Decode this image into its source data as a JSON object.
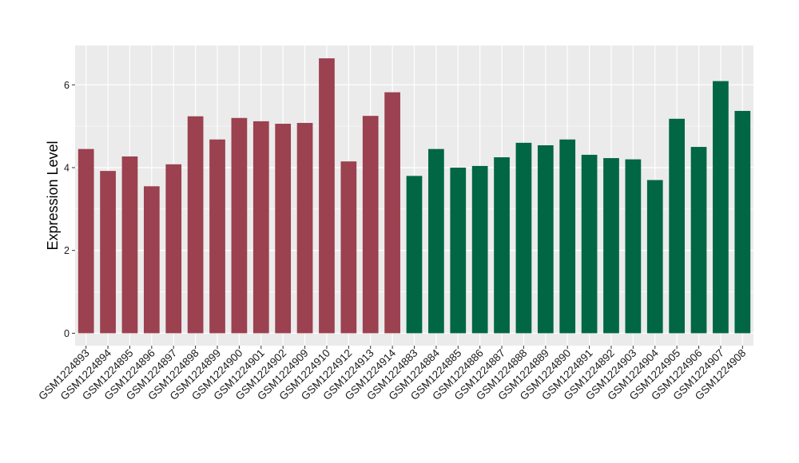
{
  "chart_data": {
    "type": "bar",
    "title": "",
    "xlabel": "",
    "ylabel": "Expression Level",
    "ylim": [
      -0.3,
      6.95
    ],
    "yticks": [
      0,
      2,
      4,
      6
    ],
    "grid": true,
    "legend": "none",
    "categories": [
      "GSM1224893",
      "GSM1224894",
      "GSM1224895",
      "GSM1224896",
      "GSM1224897",
      "GSM1224898",
      "GSM1224899",
      "GSM1224900",
      "GSM1224901",
      "GSM1224902",
      "GSM1224909",
      "GSM1224910",
      "GSM1224912",
      "GSM1224913",
      "GSM1224914",
      "GSM1224883",
      "GSM1224884",
      "GSM1224885",
      "GSM1224886",
      "GSM1224887",
      "GSM1224888",
      "GSM1224889",
      "GSM1224890",
      "GSM1224891",
      "GSM1224892",
      "GSM1224903",
      "GSM1224904",
      "GSM1224905",
      "GSM1224906",
      "GSM1224907",
      "GSM1224908"
    ],
    "values": [
      4.45,
      3.92,
      4.27,
      3.55,
      4.08,
      5.24,
      4.68,
      5.2,
      5.12,
      5.06,
      5.08,
      6.64,
      4.15,
      5.25,
      5.82,
      3.8,
      4.45,
      4.0,
      4.04,
      4.25,
      4.6,
      4.54,
      4.68,
      4.31,
      4.23,
      4.2,
      3.7,
      5.18,
      4.5,
      6.09,
      5.37
    ],
    "group_colors": [
      "#9b4150",
      "#006644"
    ],
    "bar_groups": [
      0,
      0,
      0,
      0,
      0,
      0,
      0,
      0,
      0,
      0,
      0,
      0,
      0,
      0,
      0,
      1,
      1,
      1,
      1,
      1,
      1,
      1,
      1,
      1,
      1,
      1,
      1,
      1,
      1,
      1,
      1
    ],
    "panel_background": "#ebebeb",
    "grid_color": "#ffffff"
  }
}
